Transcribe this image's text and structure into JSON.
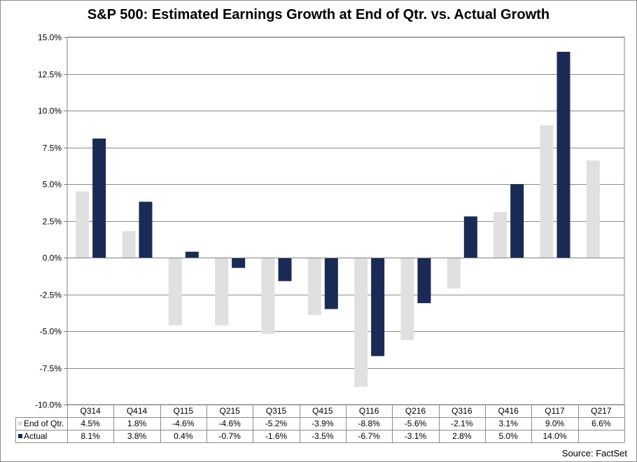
{
  "chart_data": {
    "type": "bar",
    "title": "S&P 500: Estimated Earnings Growth  at End of Qtr. vs. Actual Growth",
    "categories": [
      "Q314",
      "Q414",
      "Q115",
      "Q215",
      "Q315",
      "Q415",
      "Q116",
      "Q216",
      "Q316",
      "Q416",
      "Q117",
      "Q217"
    ],
    "series": [
      {
        "name": "End of Qtr.",
        "color": "#e0e0e0",
        "values": [
          4.5,
          1.8,
          -4.6,
          -4.6,
          -5.2,
          -3.9,
          -8.8,
          -5.6,
          -2.1,
          3.1,
          9.0,
          6.6
        ],
        "labels": [
          "4.5%",
          "1.8%",
          "-4.6%",
          "-4.6%",
          "-5.2%",
          "-3.9%",
          "-8.8%",
          "-5.6%",
          "-2.1%",
          "3.1%",
          "9.0%",
          "6.6%"
        ]
      },
      {
        "name": "Actual",
        "color": "#1b2a55",
        "values": [
          8.1,
          3.8,
          0.4,
          -0.7,
          -1.6,
          -3.5,
          -6.7,
          -3.1,
          2.8,
          5.0,
          14.0,
          null
        ],
        "labels": [
          "8.1%",
          "3.8%",
          "0.4%",
          "-0.7%",
          "-1.6%",
          "-3.5%",
          "-6.7%",
          "-3.1%",
          "2.8%",
          "5.0%",
          "14.0%",
          ""
        ]
      }
    ],
    "ylim": [
      -10,
      15
    ],
    "yticks": [
      -10,
      -7.5,
      -5,
      -2.5,
      0,
      2.5,
      5,
      7.5,
      10,
      12.5,
      15
    ],
    "ytick_labels": [
      "-10.0%",
      "-7.5%",
      "-5.0%",
      "-2.5%",
      "0.0%",
      "2.5%",
      "5.0%",
      "7.5%",
      "10.0%",
      "12.5%",
      "15.0%"
    ],
    "grid": true,
    "legend": "data-table-below",
    "source": "Source: FactSet"
  }
}
